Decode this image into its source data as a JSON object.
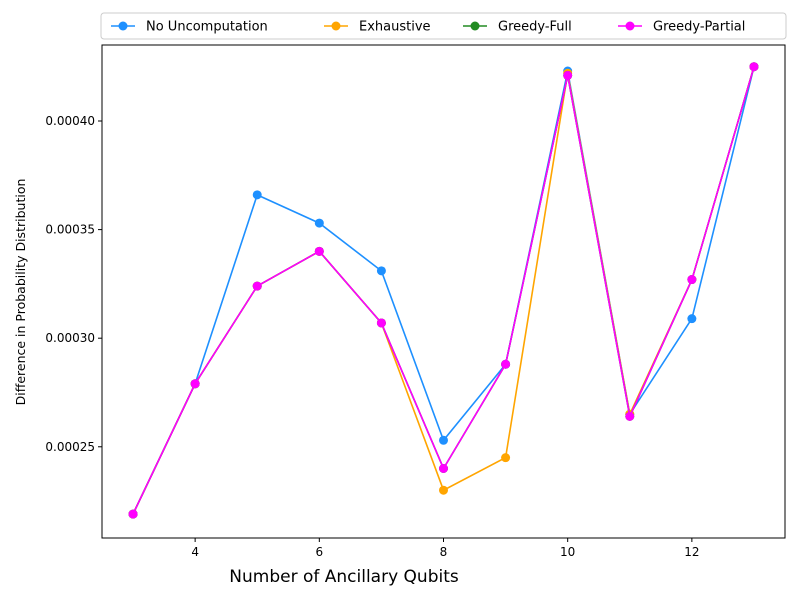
{
  "chart_data": {
    "type": "line",
    "title": "",
    "xlabel": "Number of Ancillary Qubits",
    "ylabel": "Difference in Probability Distribution",
    "x": [
      3,
      4,
      5,
      6,
      7,
      8,
      9,
      10,
      11,
      12,
      13
    ],
    "xlim": [
      2.5,
      13.5
    ],
    "ylim": [
      0.000208,
      0.000435
    ],
    "xticks": [
      4,
      6,
      8,
      10,
      12
    ],
    "yticks": [
      0.00025,
      0.0003,
      0.00035,
      0.0004
    ],
    "ytick_labels": [
      "0.00025",
      "0.00030",
      "0.00035",
      "0.00040"
    ],
    "xtick_labels": [
      "4",
      "6",
      "8",
      "10",
      "12"
    ],
    "grid": false,
    "legend_position": "top, above plot, 4 columns",
    "series": [
      {
        "name": "No Uncomputation",
        "color": "#1e90ff",
        "values": [
          0.000219,
          0.000279,
          0.000366,
          0.000353,
          0.000331,
          0.000253,
          0.000288,
          0.000423,
          0.000265,
          0.000309,
          0.000425
        ]
      },
      {
        "name": "Exhaustive",
        "color": "#ffa500",
        "values": [
          0.000219,
          0.000279,
          0.000324,
          0.00034,
          0.000307,
          0.00023,
          0.000245,
          0.000422,
          0.000265,
          0.000327,
          0.000425
        ]
      },
      {
        "name": "Greedy-Full",
        "color": "#228b22",
        "values": [
          0.000219,
          0.000279,
          0.000324,
          0.00034,
          0.000307,
          0.00024,
          0.000288,
          0.000421,
          0.000264,
          0.000327,
          0.000425
        ]
      },
      {
        "name": "Greedy-Partial",
        "color": "#ff00ff",
        "values": [
          0.000219,
          0.000279,
          0.000324,
          0.00034,
          0.000307,
          0.00024,
          0.000288,
          0.000421,
          0.000264,
          0.000327,
          0.000425
        ]
      }
    ]
  }
}
